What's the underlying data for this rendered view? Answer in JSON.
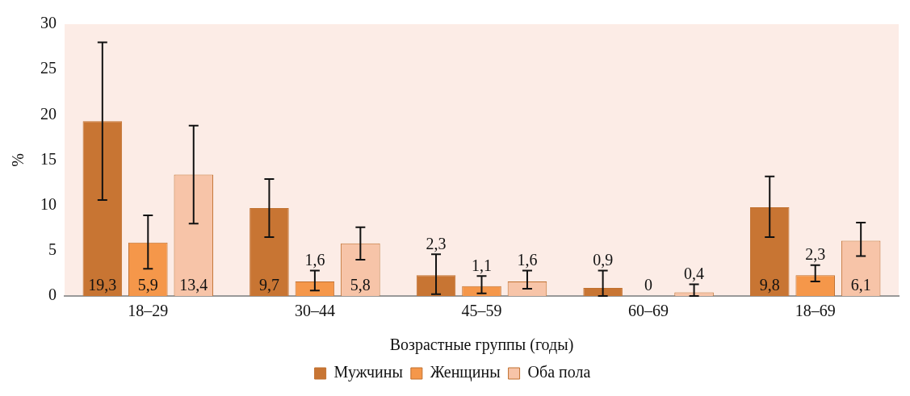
{
  "chart_data": {
    "type": "bar",
    "xlabel": "Возрастные группы (годы)",
    "ylabel": "%",
    "categories": [
      "18–29",
      "30–44",
      "45–59",
      "60–69",
      "18–69"
    ],
    "series": [
      {
        "name": "Мужчины",
        "color": "#c87533",
        "values": [
          19.3,
          9.7,
          2.3,
          0.9,
          9.8
        ],
        "errors": [
          [
            10.6,
            28.0
          ],
          [
            6.5,
            12.9
          ],
          [
            0.2,
            4.6
          ],
          [
            0,
            2.8
          ],
          [
            6.5,
            13.2
          ]
        ],
        "value_labels": [
          "19,3",
          "9,7",
          "2,3",
          "0,9",
          "9,8"
        ]
      },
      {
        "name": "Женщины",
        "color": "#f5974a",
        "values": [
          5.9,
          1.6,
          1.1,
          0,
          2.3
        ],
        "errors": [
          [
            3.0,
            8.9
          ],
          [
            0.6,
            2.8
          ],
          [
            0.3,
            2.2
          ],
          null,
          [
            1.6,
            3.4
          ]
        ],
        "value_labels": [
          "5,9",
          "1,6",
          "1,1",
          "0",
          "2,3"
        ]
      },
      {
        "name": "Оба пола",
        "color": "#f7c4a8",
        "values": [
          13.4,
          5.8,
          1.6,
          0.4,
          6.1
        ],
        "errors": [
          [
            8.0,
            18.8
          ],
          [
            4.0,
            7.6
          ],
          [
            0.8,
            2.8
          ],
          [
            0,
            1.3
          ],
          [
            4.4,
            8.1
          ]
        ],
        "value_labels": [
          "13,4",
          "5,8",
          "1,6",
          "0,4",
          "6,1"
        ]
      }
    ],
    "ylim": [
      0,
      30
    ],
    "yticks": [
      0,
      5,
      10,
      15,
      20,
      25,
      30
    ],
    "grid": false,
    "legend": "bottom"
  }
}
